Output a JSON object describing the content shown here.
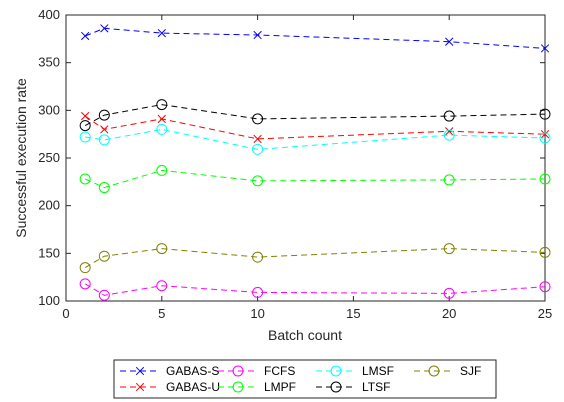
{
  "chart_data": {
    "type": "line",
    "x": [
      1,
      2,
      5,
      10,
      20,
      25
    ],
    "xlabel": "Batch count",
    "ylabel": "Successful execution rate",
    "xlim": [
      0,
      25
    ],
    "ylim": [
      100,
      400
    ],
    "xticks": [
      "0",
      "5",
      "10",
      "15",
      "20",
      "25"
    ],
    "yticks": [
      "100",
      "150",
      "200",
      "250",
      "300",
      "350",
      "400"
    ],
    "grid": false,
    "legend_position": "bottom",
    "series": [
      {
        "name": "GABAS-S",
        "color": "#0000ff",
        "marker": "x",
        "values": [
          378,
          386,
          381,
          379,
          372,
          365
        ]
      },
      {
        "name": "GABAS-U",
        "color": "#ff0000",
        "marker": "x",
        "values": [
          294,
          280,
          291,
          270,
          278,
          275
        ]
      },
      {
        "name": "FCFS",
        "color": "#ff00ff",
        "marker": "o",
        "values": [
          118,
          106,
          116,
          109,
          108,
          115
        ]
      },
      {
        "name": "LMPF",
        "color": "#00ff00",
        "marker": "o",
        "values": [
          228,
          219,
          237,
          226,
          227,
          228
        ]
      },
      {
        "name": "LMSF",
        "color": "#00ffff",
        "marker": "o",
        "values": [
          272,
          269,
          280,
          259,
          274,
          271
        ]
      },
      {
        "name": "LTSF",
        "color": "#000000",
        "marker": "o",
        "values": [
          284,
          295,
          306,
          291,
          294,
          296
        ]
      },
      {
        "name": "SJF",
        "color": "#808000",
        "marker": "o",
        "values": [
          135,
          147,
          155,
          146,
          155,
          151
        ]
      }
    ]
  }
}
